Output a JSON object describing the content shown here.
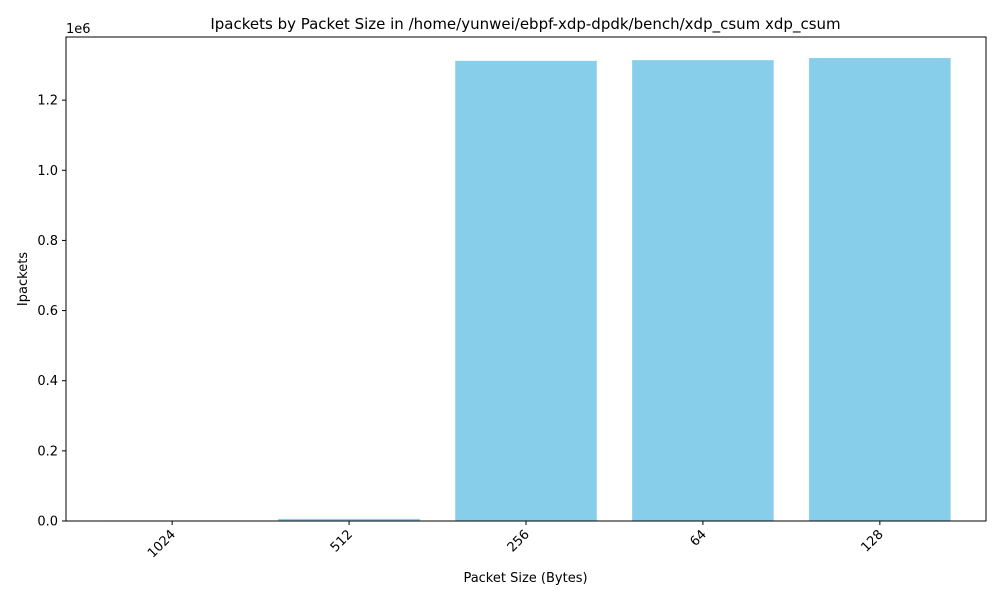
{
  "chart_data": {
    "type": "bar",
    "title": "Ipackets by Packet Size in /home/yunwei/ebpf-xdp-dpdk/bench/xdp_csum xdp_csum",
    "xlabel": "Packet Size (Bytes)",
    "ylabel": "Ipackets",
    "y_offset_label": "1e6",
    "categories": [
      "1024",
      "512",
      "256",
      "64",
      "128"
    ],
    "values": [
      1500,
      6000,
      1312000,
      1314000,
      1320000
    ],
    "ylim": [
      0,
      1380000
    ],
    "yticks": [
      0,
      200000,
      400000,
      600000,
      800000,
      1000000,
      1200000
    ],
    "ytick_labels": [
      "0.0",
      "0.2",
      "0.4",
      "0.6",
      "0.8",
      "1.0",
      "1.2"
    ],
    "bar_color": "#87ceeb",
    "grid": false,
    "legend": "none",
    "xtick_rotation": "45deg"
  }
}
